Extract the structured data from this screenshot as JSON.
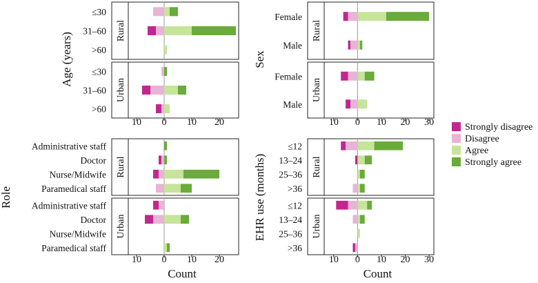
{
  "chart_data": {
    "type": "bar",
    "subtype": "diverging stacked horizontal bar (Likert)",
    "legend": {
      "position": "right",
      "entries": [
        {
          "key": "sd",
          "label": "Strongly disagree",
          "color": "#c2278f"
        },
        {
          "key": "d",
          "label": "Disagree",
          "color": "#e7b4d6"
        },
        {
          "key": "a",
          "label": "Agree",
          "color": "#c6e49a"
        },
        {
          "key": "sa",
          "label": "Strongly agree",
          "color": "#6aab3c"
        }
      ]
    },
    "panels": [
      {
        "id": "age",
        "ylabel": "Age (years)",
        "xlabel": "",
        "xlim": [
          -13,
          27
        ],
        "ticks": [
          -10,
          0,
          10,
          20
        ],
        "tick_labels": [
          "10",
          "0",
          "10",
          "20"
        ],
        "groups": [
          {
            "name": "Rural",
            "categories": [
              {
                "label": "≤30",
                "sd": 0,
                "d": 4,
                "a": 2,
                "sa": 3
              },
              {
                "label": "31–60",
                "sd": 3,
                "d": 3,
                "a": 10,
                "sa": 16
              },
              {
                "label": ">60",
                "sd": 0,
                "d": 0,
                "a": 1,
                "sa": 0
              }
            ]
          },
          {
            "name": "Urban",
            "categories": [
              {
                "label": "≤30",
                "sd": 0,
                "d": 1,
                "a": 0,
                "sa": 1
              },
              {
                "label": "31–60",
                "sd": 3,
                "d": 5,
                "a": 5,
                "sa": 3
              },
              {
                "label": ">60",
                "sd": 2,
                "d": 1,
                "a": 2,
                "sa": 0
              }
            ]
          }
        ]
      },
      {
        "id": "sex",
        "ylabel": "Sex",
        "xlabel": "",
        "xlim": [
          -14,
          32
        ],
        "ticks": [
          -10,
          0,
          10,
          20,
          30
        ],
        "tick_labels": [
          "10",
          "0",
          "10",
          "20",
          "30"
        ],
        "groups": [
          {
            "name": "Rural",
            "categories": [
              {
                "label": "Female",
                "sd": 2,
                "d": 4,
                "a": 12,
                "sa": 18
              },
              {
                "label": "Male",
                "sd": 1,
                "d": 3,
                "a": 1,
                "sa": 1
              }
            ]
          },
          {
            "name": "Urban",
            "categories": [
              {
                "label": "Female",
                "sd": 3,
                "d": 4,
                "a": 3,
                "sa": 4
              },
              {
                "label": "Male",
                "sd": 2,
                "d": 3,
                "a": 4,
                "sa": 0
              }
            ]
          }
        ]
      },
      {
        "id": "role",
        "ylabel": "Role",
        "xlabel": "Count",
        "xlim": [
          -13,
          27
        ],
        "ticks": [
          -10,
          0,
          10,
          20
        ],
        "tick_labels": [
          "10",
          "0",
          "10",
          "20"
        ],
        "groups": [
          {
            "name": "Rural",
            "categories": [
              {
                "label": "Administrative staff",
                "sd": 0,
                "d": 0,
                "a": 0,
                "sa": 1
              },
              {
                "label": "Doctor",
                "sd": 1,
                "d": 1,
                "a": 0,
                "sa": 1
              },
              {
                "label": "Nurse/Midwife",
                "sd": 2,
                "d": 2,
                "a": 7,
                "sa": 13
              },
              {
                "label": "Paramedical staff",
                "sd": 0,
                "d": 3,
                "a": 6,
                "sa": 4
              }
            ]
          },
          {
            "name": "Urban",
            "categories": [
              {
                "label": "Administrative staff",
                "sd": 2,
                "d": 2,
                "a": 0,
                "sa": 0
              },
              {
                "label": "Doctor",
                "sd": 3,
                "d": 4,
                "a": 6,
                "sa": 3
              },
              {
                "label": "Nurse/Midwife",
                "sd": 0,
                "d": 0,
                "a": 0,
                "sa": 0
              },
              {
                "label": "Paramedical staff",
                "sd": 0,
                "d": 0,
                "a": 1,
                "sa": 1
              }
            ]
          }
        ]
      },
      {
        "id": "ehr",
        "ylabel": "EHR use (months)",
        "xlabel": "Count",
        "xlim": [
          -14,
          32
        ],
        "ticks": [
          -10,
          0,
          10,
          20,
          30
        ],
        "tick_labels": [
          "10",
          "0",
          "10",
          "20",
          "30"
        ],
        "groups": [
          {
            "name": "Rural",
            "categories": [
              {
                "label": "≤12",
                "sd": 2,
                "d": 5,
                "a": 7,
                "sa": 12
              },
              {
                "label": "13–24",
                "sd": 1,
                "d": 0,
                "a": 3,
                "sa": 3
              },
              {
                "label": "25–36",
                "sd": 0,
                "d": 0,
                "a": 1,
                "sa": 2
              },
              {
                "label": ">36",
                "sd": 0,
                "d": 2,
                "a": 1,
                "sa": 2
              }
            ]
          },
          {
            "name": "Urban",
            "categories": [
              {
                "label": "≤12",
                "sd": 5,
                "d": 4,
                "a": 4,
                "sa": 2
              },
              {
                "label": "13–24",
                "sd": 0,
                "d": 2,
                "a": 1,
                "sa": 2
              },
              {
                "label": "25–36",
                "sd": 0,
                "d": 0,
                "a": 1,
                "sa": 0
              },
              {
                "label": ">36",
                "sd": 1,
                "d": 1,
                "a": 0,
                "sa": 0
              }
            ]
          }
        ]
      }
    ]
  }
}
